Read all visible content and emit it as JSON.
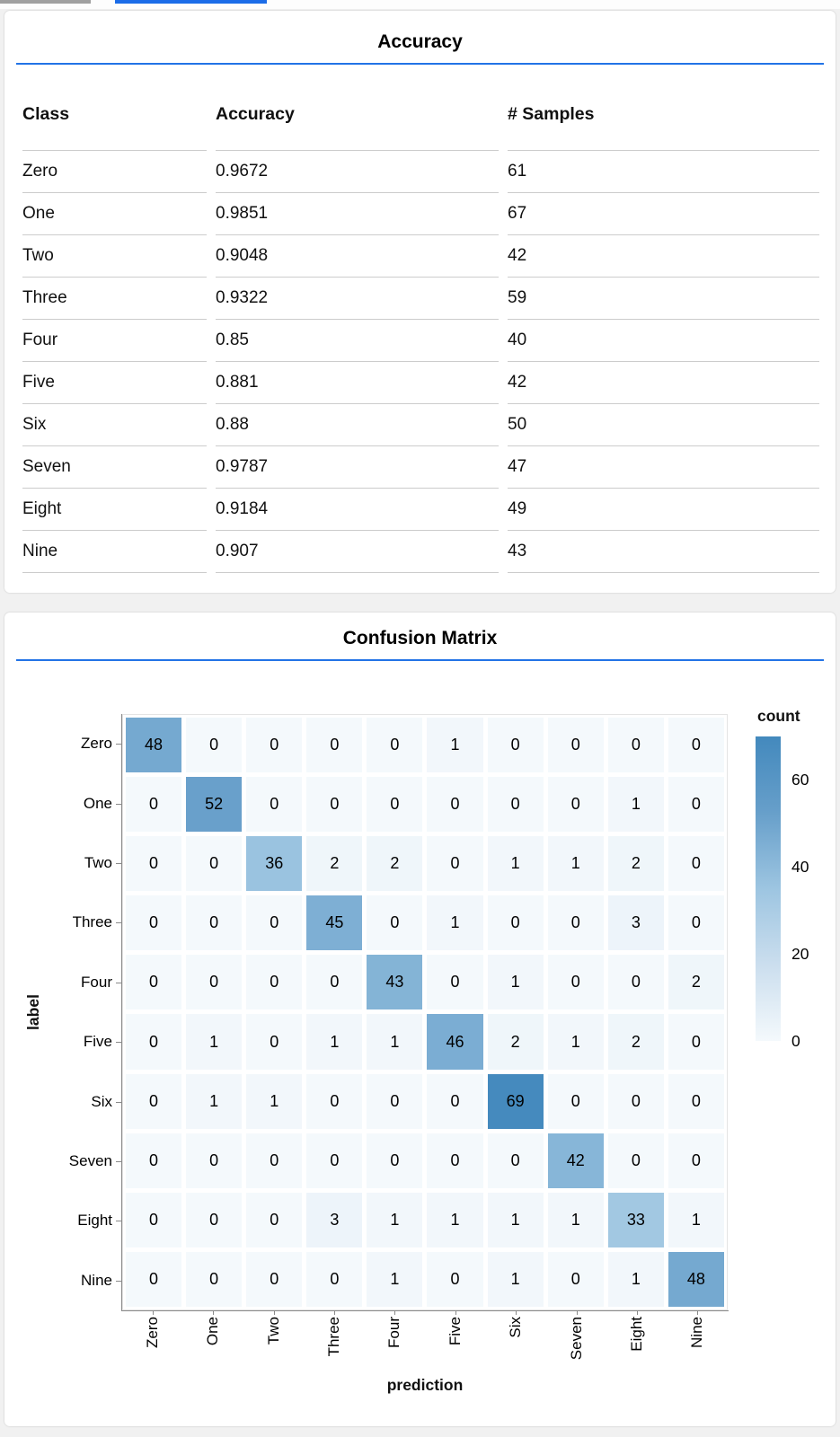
{
  "accent": {
    "divider_blue": "#2273e6",
    "top_bar_gray": "#a0a0a0",
    "top_bar_blue": "#1b6ce8",
    "heatmap_low": "#f4f9fc",
    "heatmap_high": "#4389bd"
  },
  "chart_data": [
    {
      "type": "table",
      "title": "Accuracy",
      "columns": [
        "Class",
        "Accuracy",
        "# Samples"
      ],
      "rows": [
        [
          "Zero",
          "0.9672",
          "61"
        ],
        [
          "One",
          "0.9851",
          "67"
        ],
        [
          "Two",
          "0.9048",
          "42"
        ],
        [
          "Three",
          "0.9322",
          "59"
        ],
        [
          "Four",
          "0.85",
          "40"
        ],
        [
          "Five",
          "0.881",
          "42"
        ],
        [
          "Six",
          "0.88",
          "50"
        ],
        [
          "Seven",
          "0.9787",
          "47"
        ],
        [
          "Eight",
          "0.9184",
          "49"
        ],
        [
          "Nine",
          "0.907",
          "43"
        ]
      ]
    },
    {
      "type": "heatmap",
      "title": "Confusion Matrix",
      "xlabel": "prediction",
      "ylabel": "label",
      "x_categories": [
        "Zero",
        "One",
        "Two",
        "Three",
        "Four",
        "Five",
        "Six",
        "Seven",
        "Eight",
        "Nine"
      ],
      "y_categories": [
        "Zero",
        "One",
        "Two",
        "Three",
        "Four",
        "Five",
        "Six",
        "Seven",
        "Eight",
        "Nine"
      ],
      "values": [
        [
          48,
          0,
          0,
          0,
          0,
          1,
          0,
          0,
          0,
          0
        ],
        [
          0,
          52,
          0,
          0,
          0,
          0,
          0,
          0,
          1,
          0
        ],
        [
          0,
          0,
          36,
          2,
          2,
          0,
          1,
          1,
          2,
          0
        ],
        [
          0,
          0,
          0,
          45,
          0,
          1,
          0,
          0,
          3,
          0
        ],
        [
          0,
          0,
          0,
          0,
          43,
          0,
          1,
          0,
          0,
          2
        ],
        [
          0,
          1,
          0,
          1,
          1,
          46,
          2,
          1,
          2,
          0
        ],
        [
          0,
          1,
          1,
          0,
          0,
          0,
          69,
          0,
          0,
          0
        ],
        [
          0,
          0,
          0,
          0,
          0,
          0,
          0,
          42,
          0,
          0
        ],
        [
          0,
          0,
          0,
          3,
          1,
          1,
          1,
          1,
          33,
          1
        ],
        [
          0,
          0,
          0,
          0,
          1,
          0,
          1,
          0,
          1,
          48
        ]
      ],
      "legend": {
        "title": "count",
        "ticks": [
          0,
          20,
          40,
          60
        ],
        "domain": [
          0,
          70
        ]
      },
      "color_stops": [
        "#f4f9fc",
        "#cbdeee",
        "#9dc5e1",
        "#679fca",
        "#4389bd"
      ],
      "grid": false,
      "legend_position": "right"
    }
  ]
}
